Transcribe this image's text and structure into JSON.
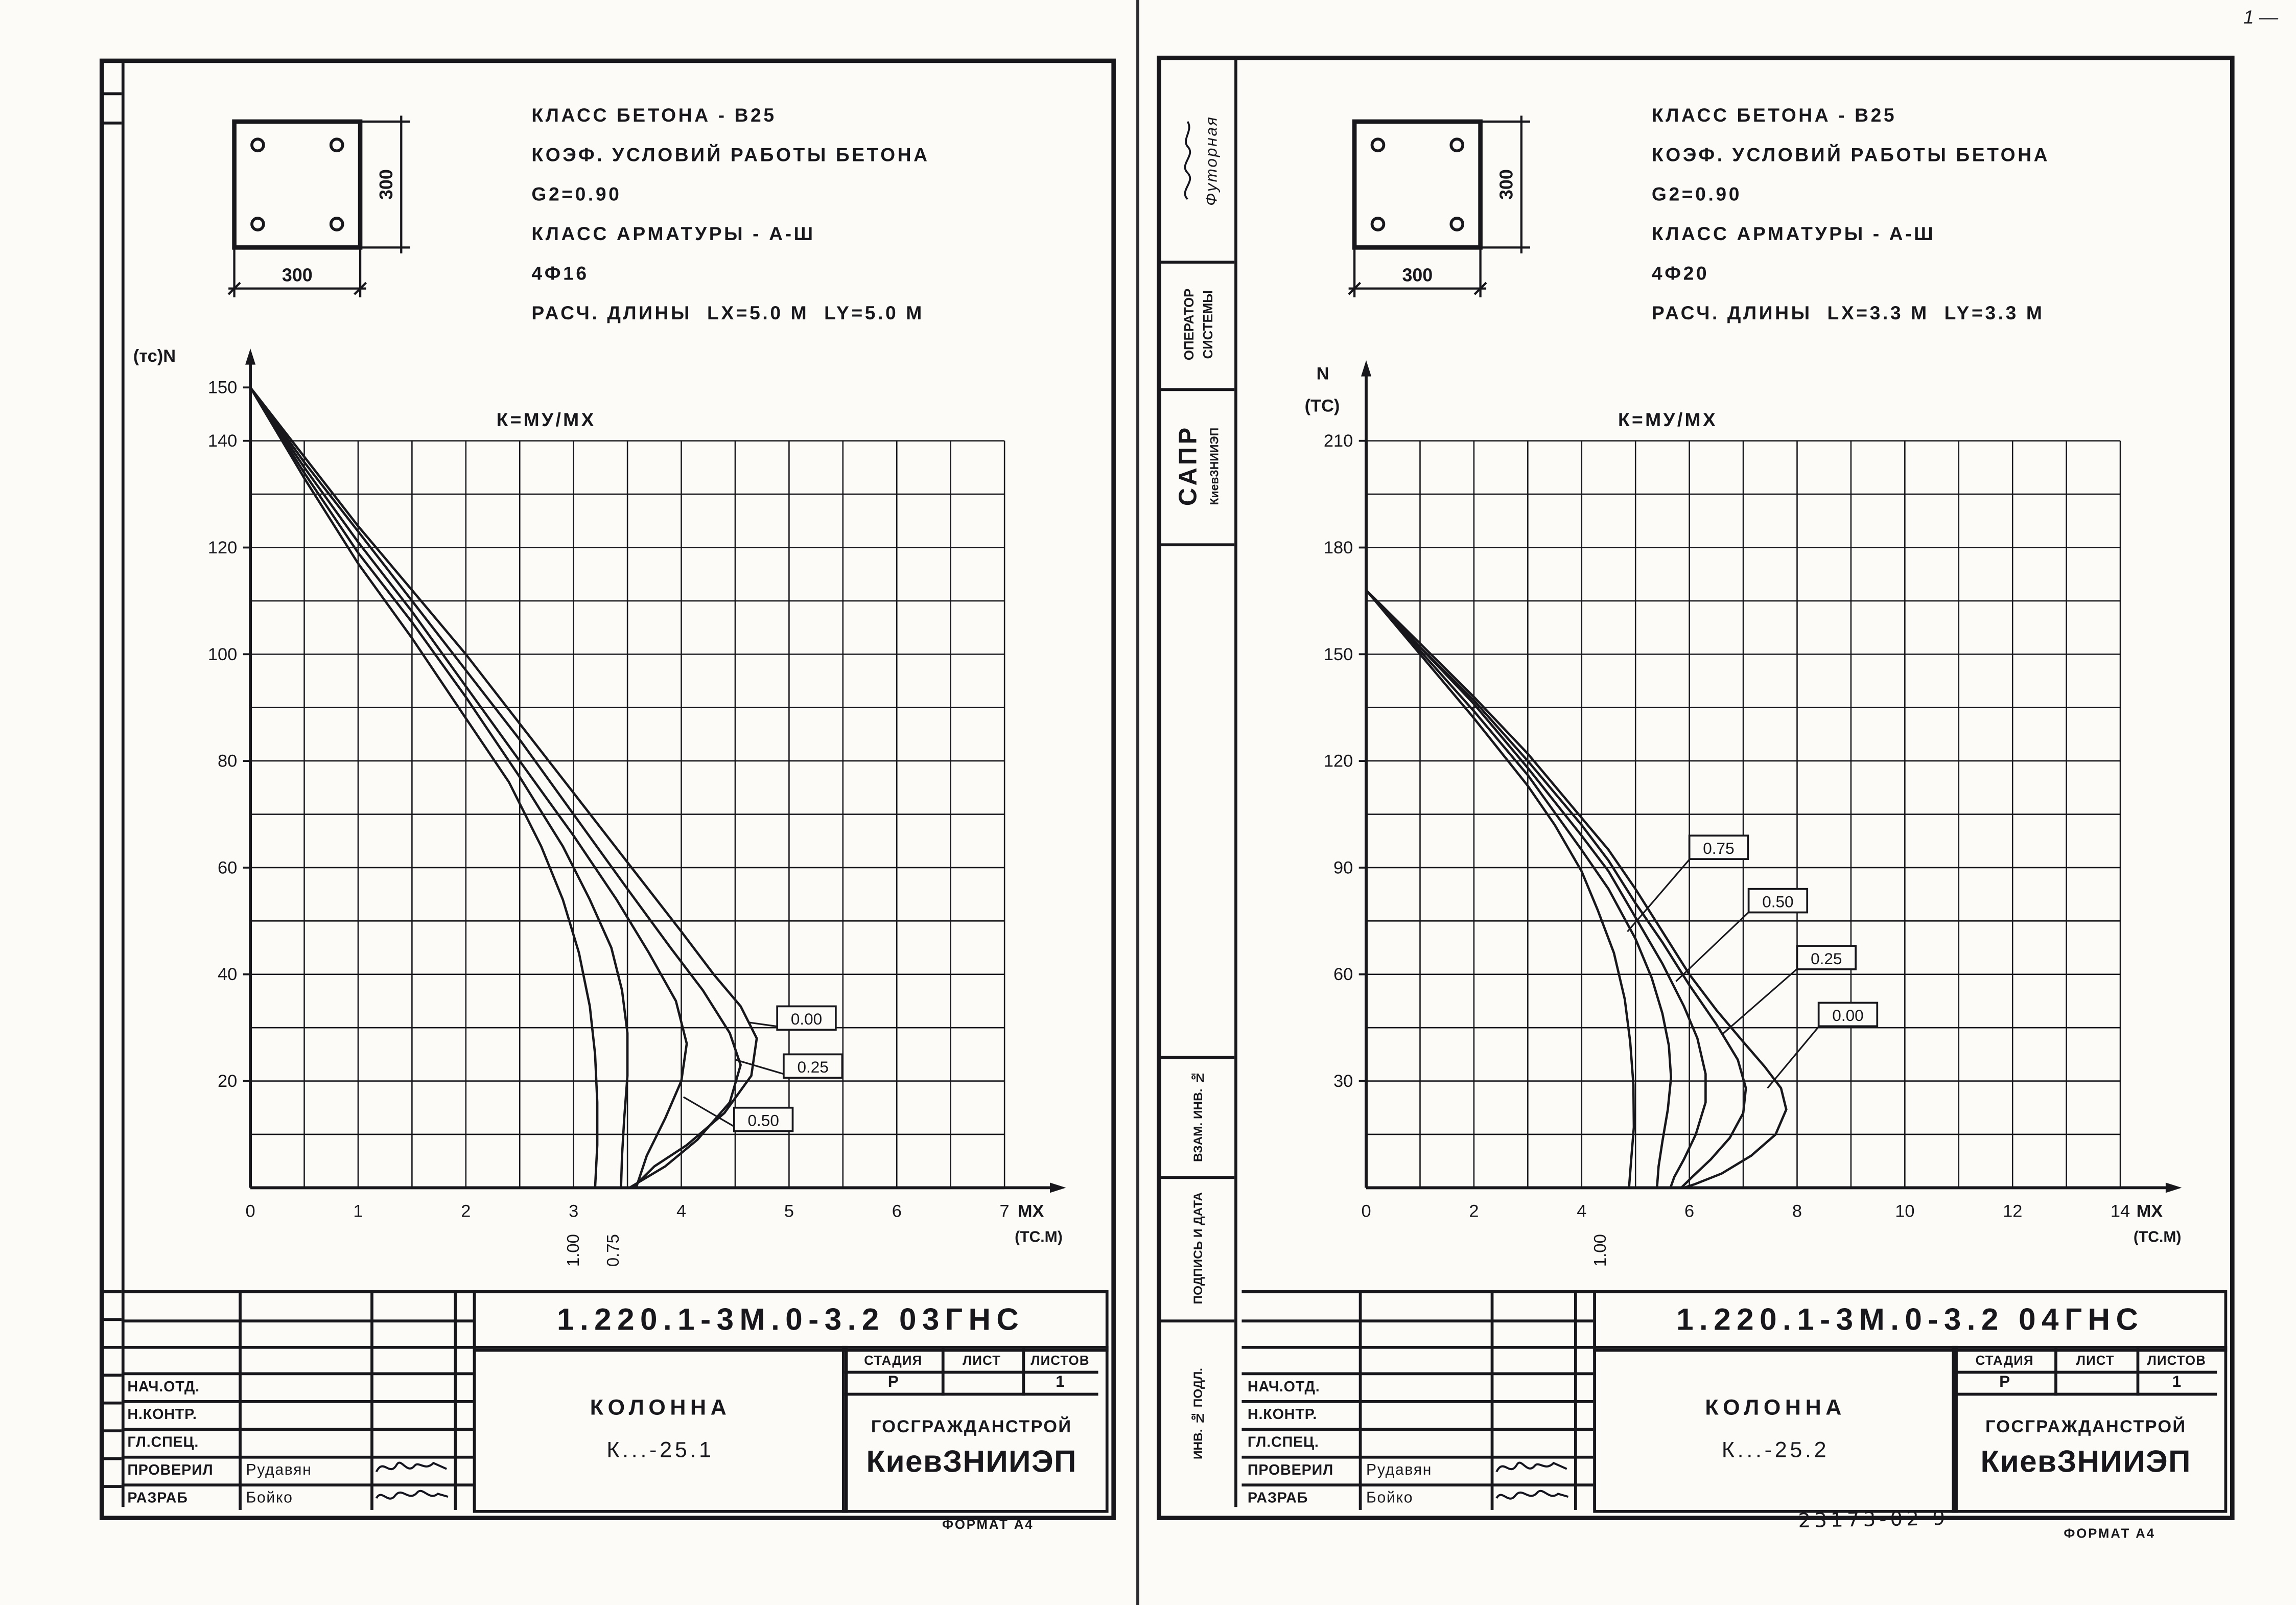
{
  "page_marks": {
    "top_right": "1 —",
    "doc_inventory_number": "23173-02 9"
  },
  "sheets": [
    {
      "section": {
        "width_dim": "300",
        "height_dim": "300"
      },
      "specs": [
        "КЛАСС БЕТОНА - В25",
        "КОЭФ. УСЛОВИЙ РАБОТЫ БЕТОНА",
        "G2=0.90",
        "КЛАСС АРМАТУРЫ - А-Ш",
        "4Ф16",
        "РАСЧ. ДЛИНЫ  LX=5.0 М  LY=5.0 М"
      ],
      "title_block": {
        "doc_number": "1.220.1-3М.0-3.2 03ГНС",
        "item_name": "КОЛОННА",
        "item_mark": "К...-25.1",
        "stage_label": "СТАДИЯ",
        "sheet_label": "ЛИСТ",
        "sheets_label": "ЛИСТОВ",
        "stage_value": "Р",
        "sheets_value": "1",
        "org_line1": "ГОСГРАЖДАНСТРОЙ",
        "org_line2": "КиевЗНИИЭП",
        "rows": [
          {
            "label": "НАЧ.ОТД.",
            "name": ""
          },
          {
            "label": "Н.КОНТР.",
            "name": ""
          },
          {
            "label": "ГЛ.СПЕЦ.",
            "name": ""
          },
          {
            "label": "ПРОВЕРИЛ",
            "name": "Рудавян"
          },
          {
            "label": "РАЗРАБ",
            "name": "Бойко"
          }
        ],
        "format_note": "ФОРМАТ А4"
      }
    },
    {
      "stamps": {
        "handwritten": "Футорная",
        "operator": [
          "ОПЕРАТОР",
          "СИСТЕМЫ"
        ],
        "sapr_big": "САПР",
        "sapr_small": "КиевЗНИИЭП",
        "vzam": "ВЗАМ. ИНВ. №",
        "podpis": "ПОДПИСЬ И ДАТА",
        "inv": "ИНВ. № ПОДЛ."
      },
      "section": {
        "width_dim": "300",
        "height_dim": "300"
      },
      "specs": [
        "КЛАСС БЕТОНА - В25",
        "КОЭФ. УСЛОВИЙ РАБОТЫ БЕТОНА",
        "G2=0.90",
        "КЛАСС АРМАТУРЫ - А-Ш",
        "4Ф20",
        "РАСЧ. ДЛИНЫ  LX=3.3 М  LY=3.3 М"
      ],
      "title_block": {
        "doc_number": "1.220.1-3М.0-3.2 04ГНС",
        "item_name": "КОЛОННА",
        "item_mark": "К...-25.2",
        "stage_label": "СТАДИЯ",
        "sheet_label": "ЛИСТ",
        "sheets_label": "ЛИСТОВ",
        "stage_value": "Р",
        "sheets_value": "1",
        "org_line1": "ГОСГРАЖДАНСТРОЙ",
        "org_line2": "КиевЗНИИЭП",
        "rows": [
          {
            "label": "НАЧ.ОТД.",
            "name": ""
          },
          {
            "label": "Н.КОНТР.",
            "name": ""
          },
          {
            "label": "ГЛ.СПЕЦ.",
            "name": ""
          },
          {
            "label": "ПРОВЕРИЛ",
            "name": "Рудавян"
          },
          {
            "label": "РАЗРАБ",
            "name": "Бойко"
          }
        ],
        "format_note": "ФОРМАТ А4"
      }
    }
  ],
  "chart_data": [
    {
      "type": "line",
      "title": "К=МУ/МХ",
      "ylabel": "N (тс)",
      "ylabel_lines": [
        "(тс)N"
      ],
      "xlabel": "МХ",
      "x_units": "(ТС.М)",
      "xlim": [
        0,
        7
      ],
      "ylim": [
        0,
        150
      ],
      "grid": {
        "x_step": 0.5,
        "y_step": 10,
        "x_max": 7,
        "y_max": 140
      },
      "x_ticks": [
        0,
        1,
        2,
        3,
        4,
        5,
        6,
        7
      ],
      "y_ticks": [
        20,
        40,
        60,
        80,
        100,
        120,
        140,
        150
      ],
      "legend_note": "curves labeled by K = MY/MX",
      "series": [
        {
          "name": "0.00",
          "points": [
            [
              0,
              150
            ],
            [
              0.5,
              137
            ],
            [
              1,
              124
            ],
            [
              1.5,
              112
            ],
            [
              2,
              100
            ],
            [
              2.5,
              87
            ],
            [
              3,
              74
            ],
            [
              3.5,
              61
            ],
            [
              4,
              48
            ],
            [
              4.3,
              40
            ],
            [
              4.55,
              34
            ],
            [
              4.7,
              28
            ],
            [
              4.65,
              21
            ],
            [
              4.4,
              14
            ],
            [
              4.05,
              8
            ],
            [
              3.75,
              4
            ],
            [
              3.55,
              0
            ]
          ],
          "label_box": {
            "at": [
              4.89,
              34
            ],
            "leader_to": [
              4.62,
              31
            ]
          }
        },
        {
          "name": "0.25",
          "points": [
            [
              0,
              150
            ],
            [
              0.5,
              136
            ],
            [
              1,
              123
            ],
            [
              1.5,
              110
            ],
            [
              2,
              97
            ],
            [
              2.5,
              84
            ],
            [
              3,
              70
            ],
            [
              3.5,
              56
            ],
            [
              3.9,
              45
            ],
            [
              4.2,
              37
            ],
            [
              4.45,
              29
            ],
            [
              4.55,
              23
            ],
            [
              4.45,
              16
            ],
            [
              4.15,
              9
            ],
            [
              3.85,
              4
            ],
            [
              3.6,
              1
            ],
            [
              3.52,
              0
            ]
          ],
          "label_box": {
            "at": [
              4.95,
              25
            ],
            "leader_to": [
              4.5,
              24
            ]
          }
        },
        {
          "name": "0.50",
          "points": [
            [
              0,
              150
            ],
            [
              0.5,
              135
            ],
            [
              1,
              121
            ],
            [
              1.5,
              108
            ],
            [
              2,
              94
            ],
            [
              2.5,
              80
            ],
            [
              3,
              66
            ],
            [
              3.4,
              54
            ],
            [
              3.7,
              44
            ],
            [
              3.95,
              35
            ],
            [
              4.05,
              27
            ],
            [
              4.0,
              20
            ],
            [
              3.85,
              13
            ],
            [
              3.68,
              6
            ],
            [
              3.58,
              0
            ]
          ],
          "label_box": {
            "at": [
              4.49,
              15
            ],
            "leader_to": [
              4.02,
              17
            ]
          }
        },
        {
          "name": "0.75",
          "points": [
            [
              0,
              150
            ],
            [
              0.5,
              134
            ],
            [
              1,
              119
            ],
            [
              1.5,
              106
            ],
            [
              2,
              92
            ],
            [
              2.5,
              77
            ],
            [
              2.9,
              64
            ],
            [
              3.15,
              54
            ],
            [
              3.35,
              45
            ],
            [
              3.45,
              37
            ],
            [
              3.5,
              29
            ],
            [
              3.5,
              21
            ],
            [
              3.47,
              13
            ],
            [
              3.45,
              6
            ],
            [
              3.44,
              0
            ]
          ],
          "axis_label": {
            "x": 3.42
          }
        },
        {
          "name": "1.00",
          "points": [
            [
              0,
              150
            ],
            [
              0.5,
              133
            ],
            [
              1,
              117
            ],
            [
              1.5,
              103
            ],
            [
              2,
              88
            ],
            [
              2.4,
              76
            ],
            [
              2.7,
              64
            ],
            [
              2.9,
              54
            ],
            [
              3.05,
              44
            ],
            [
              3.15,
              34
            ],
            [
              3.2,
              25
            ],
            [
              3.22,
              16
            ],
            [
              3.22,
              8
            ],
            [
              3.2,
              0
            ]
          ],
          "axis_label": {
            "x": 3.05
          }
        }
      ]
    },
    {
      "type": "line",
      "title": "К=МУ/МХ",
      "ylabel": "N (ТС)",
      "ylabel_lines": [
        "N",
        "(ТС)"
      ],
      "xlabel": "МХ",
      "x_units": "(ТС.М)",
      "xlim": [
        0,
        14
      ],
      "ylim": [
        0,
        210
      ],
      "grid": {
        "x_step": 1,
        "y_step": 15,
        "x_max": 14,
        "y_max": 210
      },
      "x_ticks": [
        0,
        2,
        4,
        6,
        8,
        10,
        12,
        14
      ],
      "y_ticks": [
        30,
        60,
        90,
        120,
        150,
        180,
        210
      ],
      "legend_note": "curves labeled by K = MY/MX",
      "series": [
        {
          "name": "0.00",
          "points": [
            [
              0,
              168
            ],
            [
              1,
              153
            ],
            [
              2,
              138
            ],
            [
              3,
              122
            ],
            [
              4,
              104
            ],
            [
              4.5,
              95
            ],
            [
              5,
              84
            ],
            [
              5.5,
              72
            ],
            [
              6,
              60
            ],
            [
              6.5,
              50
            ],
            [
              7,
              41
            ],
            [
              7.4,
              34
            ],
            [
              7.7,
              28
            ],
            [
              7.8,
              22
            ],
            [
              7.6,
              15
            ],
            [
              7.15,
              9
            ],
            [
              6.6,
              4
            ],
            [
              6.1,
              1
            ],
            [
              5.9,
              0
            ]
          ],
          "label_box": {
            "at": [
              8.4,
              52
            ],
            "leader_to": [
              7.45,
              28
            ]
          }
        },
        {
          "name": "0.25",
          "points": [
            [
              0,
              168
            ],
            [
              1,
              152
            ],
            [
              2,
              137
            ],
            [
              3,
              120
            ],
            [
              4,
              102
            ],
            [
              4.5,
              92
            ],
            [
              5,
              80
            ],
            [
              5.5,
              69
            ],
            [
              6,
              57
            ],
            [
              6.5,
              46
            ],
            [
              6.9,
              36
            ],
            [
              7.05,
              28
            ],
            [
              7.0,
              21
            ],
            [
              6.75,
              14
            ],
            [
              6.4,
              8
            ],
            [
              6.05,
              3
            ],
            [
              5.85,
              0
            ]
          ],
          "label_box": {
            "at": [
              8.0,
              68
            ],
            "leader_to": [
              6.6,
              43
            ]
          }
        },
        {
          "name": "0.50",
          "points": [
            [
              0,
              168
            ],
            [
              1,
              152
            ],
            [
              2,
              136
            ],
            [
              3,
              118
            ],
            [
              4,
              99
            ],
            [
              4.5,
              89
            ],
            [
              5,
              76
            ],
            [
              5.5,
              63
            ],
            [
              5.9,
              51
            ],
            [
              6.15,
              42
            ],
            [
              6.3,
              32
            ],
            [
              6.3,
              24
            ],
            [
              6.12,
              15
            ],
            [
              5.9,
              8
            ],
            [
              5.72,
              3
            ],
            [
              5.65,
              0
            ]
          ],
          "label_box": {
            "at": [
              7.1,
              84
            ],
            "leader_to": [
              5.75,
              58
            ]
          }
        },
        {
          "name": "0.75",
          "points": [
            [
              0,
              168
            ],
            [
              1,
              151
            ],
            [
              2,
              134
            ],
            [
              3,
              116
            ],
            [
              4,
              95
            ],
            [
              4.5,
              84
            ],
            [
              5,
              70
            ],
            [
              5.3,
              59
            ],
            [
              5.5,
              49
            ],
            [
              5.62,
              40
            ],
            [
              5.66,
              31
            ],
            [
              5.6,
              22
            ],
            [
              5.5,
              13
            ],
            [
              5.43,
              6
            ],
            [
              5.4,
              0
            ]
          ],
          "label_box": {
            "at": [
              6.0,
              99
            ],
            "leader_to": [
              4.85,
              72
            ]
          }
        },
        {
          "name": "1.00",
          "points": [
            [
              0,
              168
            ],
            [
              1,
              150
            ],
            [
              2,
              132
            ],
            [
              3,
              113
            ],
            [
              3.5,
              102
            ],
            [
              4,
              89
            ],
            [
              4.3,
              78
            ],
            [
              4.6,
              66
            ],
            [
              4.8,
              53
            ],
            [
              4.9,
              41
            ],
            [
              4.96,
              29
            ],
            [
              4.97,
              17
            ],
            [
              4.92,
              8
            ],
            [
              4.88,
              0
            ]
          ],
          "axis_label": {
            "x": 4.45
          }
        }
      ]
    }
  ]
}
